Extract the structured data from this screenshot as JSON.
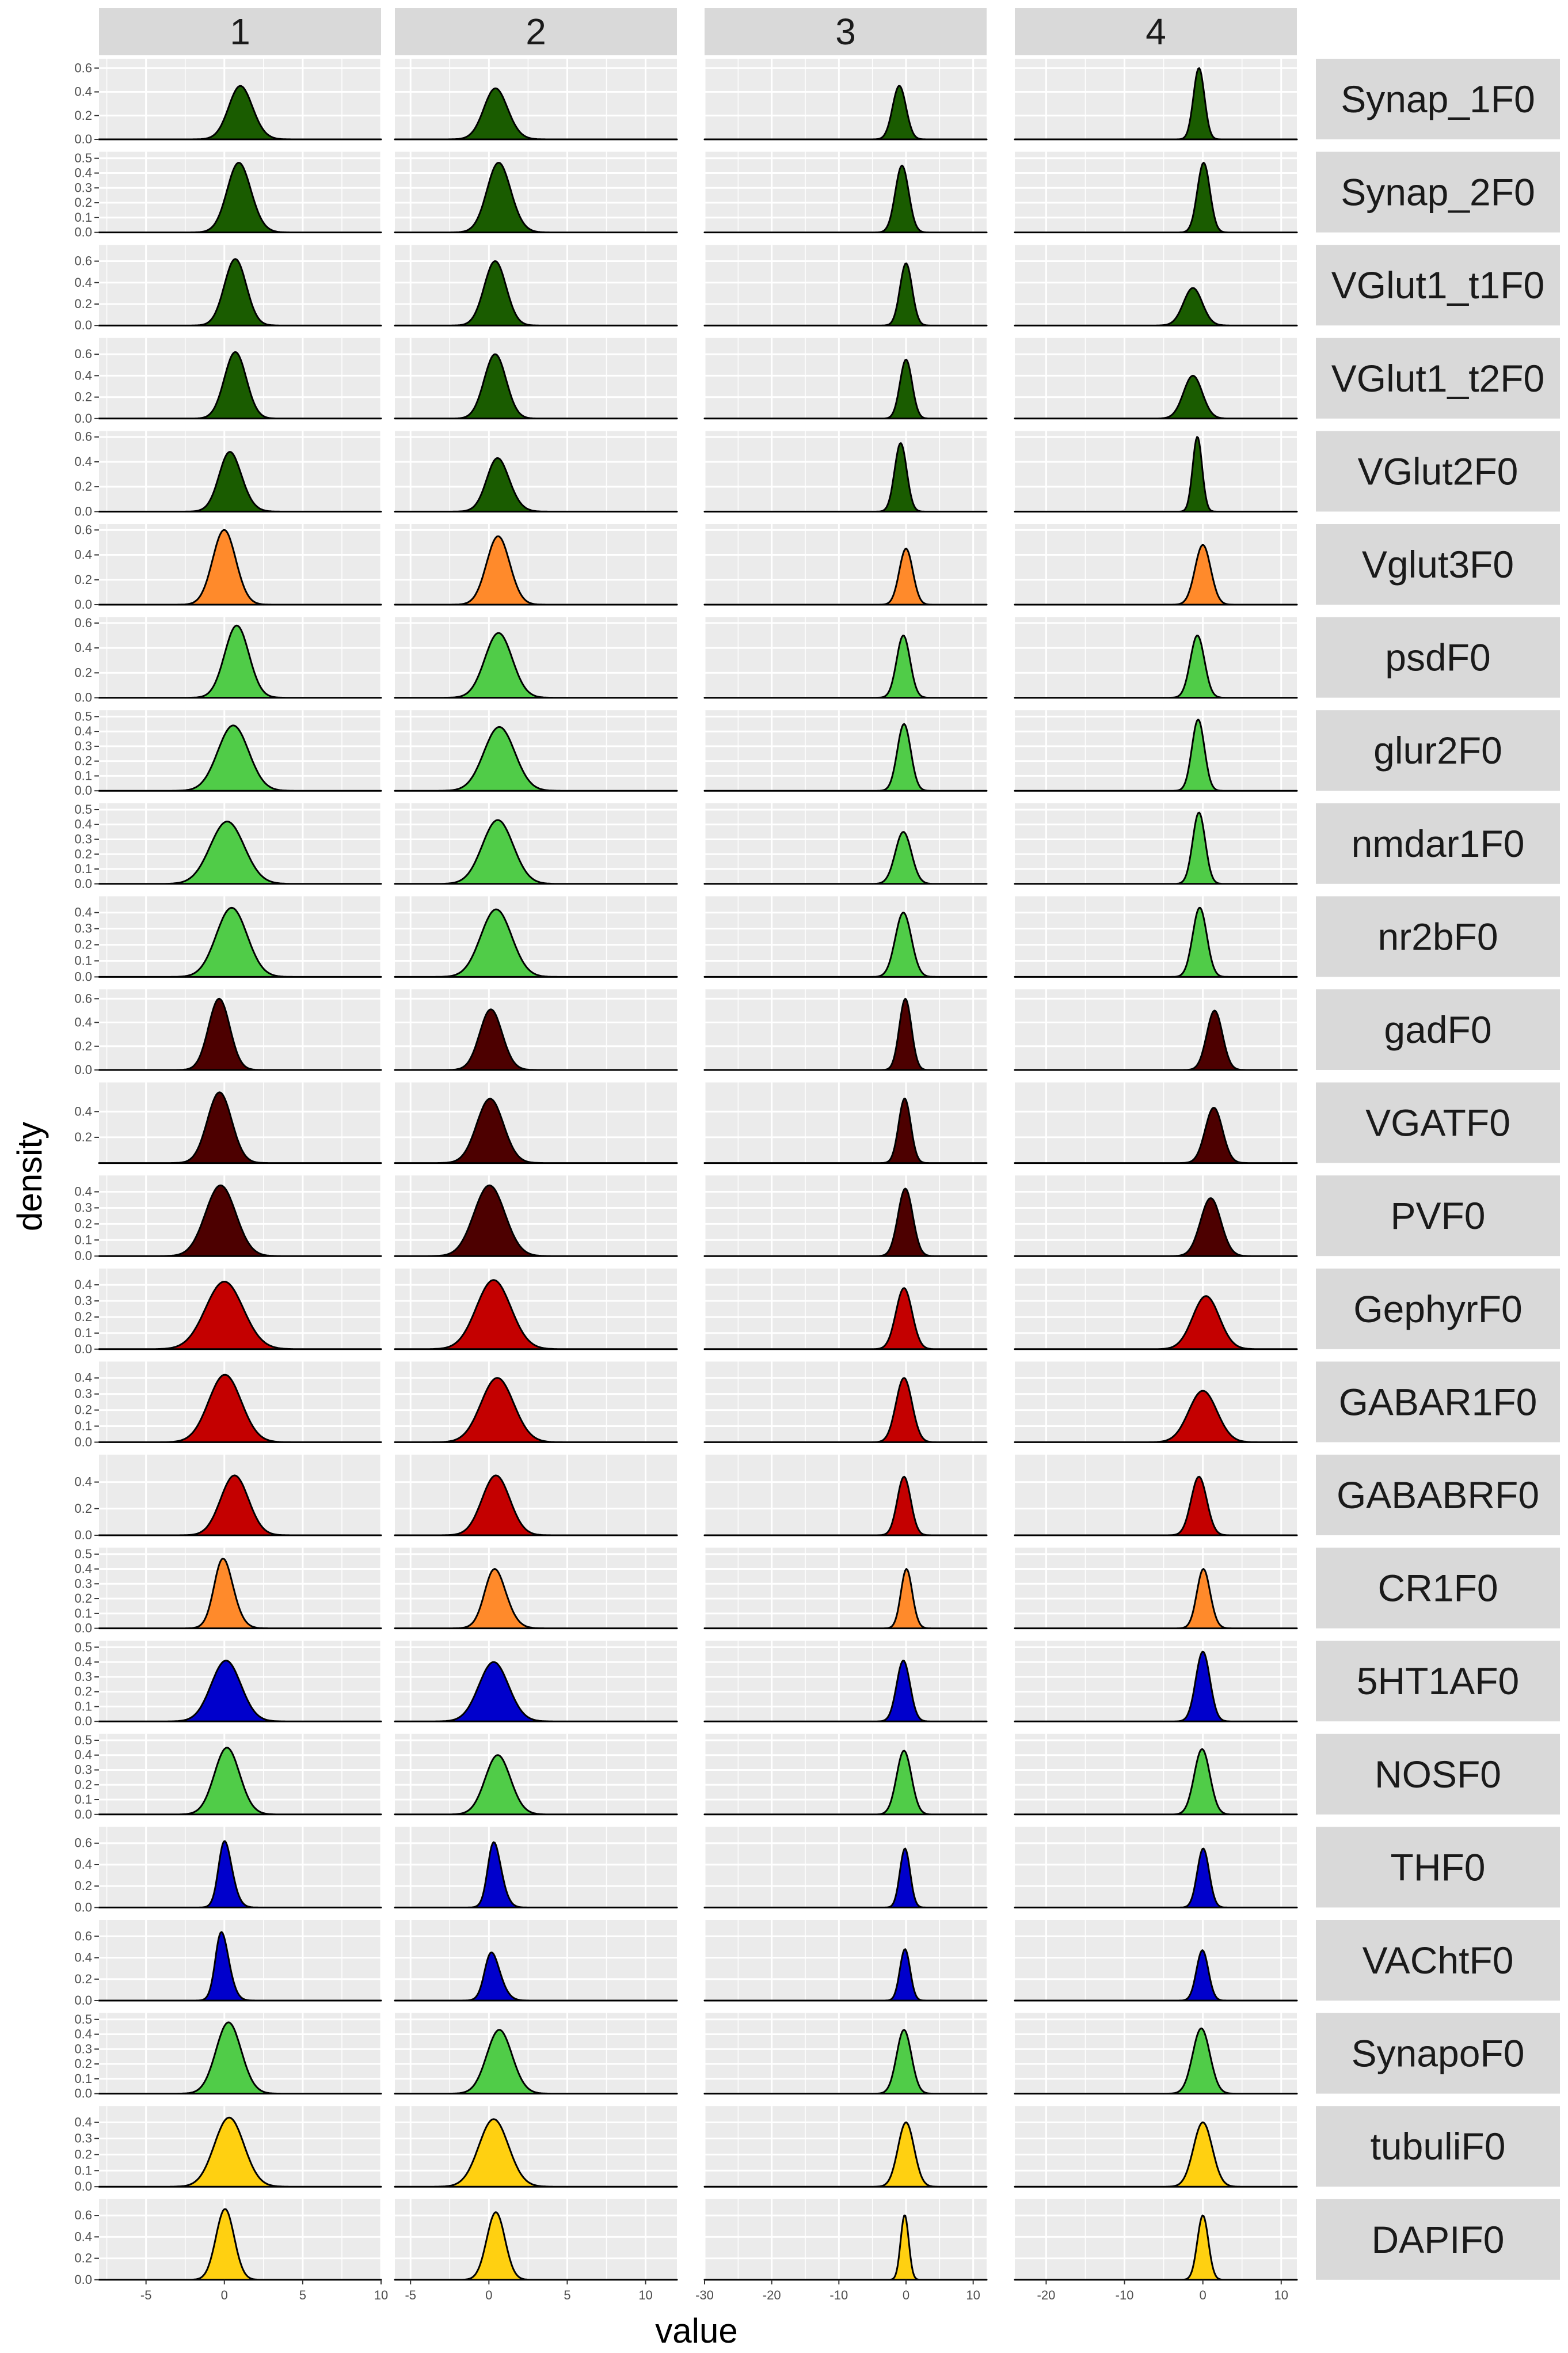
{
  "chart_data": {
    "type": "area",
    "subtype": "density-facet-grid",
    "title": "",
    "xlabel": "value",
    "ylabel": "density",
    "columns": [
      {
        "label": "1",
        "xlim": [
          -8,
          10
        ],
        "xticks": [
          -5,
          0,
          5,
          10
        ]
      },
      {
        "label": "2",
        "xlim": [
          -6,
          12
        ],
        "xticks": [
          -5,
          0,
          5,
          10
        ]
      },
      {
        "label": "3",
        "xlim": [
          -30,
          12
        ],
        "xticks": [
          -30,
          -20,
          -10,
          0,
          10
        ]
      },
      {
        "label": "4",
        "xlim": [
          -24,
          12
        ],
        "xticks": [
          -20,
          -10,
          0,
          10
        ]
      }
    ],
    "rows": [
      {
        "label": "Synap_1F0",
        "color": "#1a5c00",
        "ymax": 0.65,
        "yticks": [
          "0.0",
          "0.2",
          "0.4",
          "0.6"
        ],
        "dist": [
          {
            "mu": 0.6,
            "sd": 0.9,
            "skew": 0.8,
            "peak": 0.45
          },
          {
            "mu": 0.0,
            "sd": 0.9,
            "skew": 0.8,
            "peak": 0.43
          },
          {
            "mu": -1.0,
            "sd": 1.0,
            "skew": 0.0,
            "peak": 0.45
          },
          {
            "mu": -0.5,
            "sd": 0.7,
            "skew": 0.0,
            "peak": 0.6
          }
        ]
      },
      {
        "label": "Synap_2F0",
        "color": "#1a5c00",
        "ymax": 0.52,
        "yticks": [
          "0.0",
          "0.1",
          "0.2",
          "0.3",
          "0.4",
          "0.5"
        ],
        "dist": [
          {
            "mu": 0.5,
            "sd": 0.9,
            "skew": 0.8,
            "peak": 0.47
          },
          {
            "mu": 0.2,
            "sd": 0.9,
            "skew": 0.8,
            "peak": 0.47
          },
          {
            "mu": -0.6,
            "sd": 1.0,
            "skew": 0.0,
            "peak": 0.45
          },
          {
            "mu": 0.1,
            "sd": 0.8,
            "skew": 0.0,
            "peak": 0.47
          }
        ]
      },
      {
        "label": "VGlut1_t1F0",
        "color": "#1a5c00",
        "ymax": 0.72,
        "yticks": [
          "0.0",
          "0.2",
          "0.4",
          "0.6"
        ],
        "dist": [
          {
            "mu": 0.7,
            "sd": 0.7,
            "skew": 0.0,
            "peak": 0.62
          },
          {
            "mu": 0.4,
            "sd": 0.7,
            "skew": 0.0,
            "peak": 0.6
          },
          {
            "mu": 0.0,
            "sd": 0.9,
            "skew": 0.0,
            "peak": 0.58
          },
          {
            "mu": -0.8,
            "sd": 1.3,
            "skew": -0.5,
            "peak": 0.35
          }
        ]
      },
      {
        "label": "VGlut1_t2F0",
        "color": "#1a5c00",
        "ymax": 0.72,
        "yticks": [
          "0.0",
          "0.2",
          "0.4",
          "0.6"
        ],
        "dist": [
          {
            "mu": 0.7,
            "sd": 0.7,
            "skew": 0.0,
            "peak": 0.62
          },
          {
            "mu": 0.4,
            "sd": 0.7,
            "skew": 0.0,
            "peak": 0.6
          },
          {
            "mu": 0.0,
            "sd": 0.9,
            "skew": 0.0,
            "peak": 0.55
          },
          {
            "mu": -0.8,
            "sd": 1.3,
            "skew": -0.5,
            "peak": 0.4
          }
        ]
      },
      {
        "label": "VGlut2F0",
        "color": "#1a5c00",
        "ymax": 0.62,
        "yticks": [
          "0.0",
          "0.2",
          "0.4",
          "0.6"
        ],
        "dist": [
          {
            "mu": -0.1,
            "sd": 0.9,
            "skew": 1.0,
            "peak": 0.48
          },
          {
            "mu": 0.1,
            "sd": 0.9,
            "skew": 1.0,
            "peak": 0.43
          },
          {
            "mu": -0.8,
            "sd": 0.9,
            "skew": 0.0,
            "peak": 0.55
          },
          {
            "mu": -0.7,
            "sd": 0.6,
            "skew": 0.0,
            "peak": 0.6
          }
        ]
      },
      {
        "label": "Vglut3F0",
        "color": "#ff8a2b",
        "ymax": 0.62,
        "yticks": [
          "0.0",
          "0.2",
          "0.4",
          "0.6"
        ],
        "dist": [
          {
            "mu": -0.3,
            "sd": 0.8,
            "skew": 0.5,
            "peak": 0.6
          },
          {
            "mu": 0.3,
            "sd": 0.8,
            "skew": 0.5,
            "peak": 0.55
          },
          {
            "mu": 0.0,
            "sd": 1.0,
            "skew": 0.0,
            "peak": 0.45
          },
          {
            "mu": 0.0,
            "sd": 1.0,
            "skew": 0.0,
            "peak": 0.48
          }
        ]
      },
      {
        "label": "psdF0",
        "color": "#50cc48",
        "ymax": 0.62,
        "yticks": [
          "0.0",
          "0.2",
          "0.4",
          "0.6"
        ],
        "dist": [
          {
            "mu": 0.6,
            "sd": 0.8,
            "skew": 0.3,
            "peak": 0.58
          },
          {
            "mu": 0.4,
            "sd": 0.9,
            "skew": 0.3,
            "peak": 0.52
          },
          {
            "mu": -0.4,
            "sd": 1.0,
            "skew": 0.0,
            "peak": 0.5
          },
          {
            "mu": -0.7,
            "sd": 0.9,
            "skew": 0.0,
            "peak": 0.5
          }
        ]
      },
      {
        "label": "glur2F0",
        "color": "#50cc48",
        "ymax": 0.52,
        "yticks": [
          "0.0",
          "0.1",
          "0.2",
          "0.3",
          "0.4",
          "0.5"
        ],
        "dist": [
          {
            "mu": 0.4,
            "sd": 1.0,
            "skew": 0.2,
            "peak": 0.44
          },
          {
            "mu": 0.5,
            "sd": 1.0,
            "skew": 0.2,
            "peak": 0.43
          },
          {
            "mu": -0.3,
            "sd": 1.0,
            "skew": 0.0,
            "peak": 0.45
          },
          {
            "mu": -0.6,
            "sd": 0.8,
            "skew": 0.0,
            "peak": 0.48
          }
        ]
      },
      {
        "label": "nmdar1F0",
        "color": "#50cc48",
        "ymax": 0.52,
        "yticks": [
          "0.0",
          "0.1",
          "0.2",
          "0.3",
          "0.4",
          "0.5"
        ],
        "dist": [
          {
            "mu": 0.0,
            "sd": 1.1,
            "skew": 0.2,
            "peak": 0.42
          },
          {
            "mu": 0.4,
            "sd": 1.0,
            "skew": 0.2,
            "peak": 0.43
          },
          {
            "mu": -0.4,
            "sd": 1.2,
            "skew": 0.0,
            "peak": 0.35
          },
          {
            "mu": -0.5,
            "sd": 0.8,
            "skew": 0.0,
            "peak": 0.48
          }
        ]
      },
      {
        "label": "nr2bF0",
        "color": "#50cc48",
        "ymax": 0.48,
        "yticks": [
          "0.0",
          "0.1",
          "0.2",
          "0.3",
          "0.4"
        ],
        "dist": [
          {
            "mu": 0.3,
            "sd": 1.0,
            "skew": 0.2,
            "peak": 0.43
          },
          {
            "mu": 0.3,
            "sd": 1.0,
            "skew": 0.2,
            "peak": 0.42
          },
          {
            "mu": -0.4,
            "sd": 1.2,
            "skew": 0.0,
            "peak": 0.4
          },
          {
            "mu": -0.4,
            "sd": 0.9,
            "skew": 0.0,
            "peak": 0.43
          }
        ]
      },
      {
        "label": "gadF0",
        "color": "#4d0000",
        "ymax": 0.65,
        "yticks": [
          "0.0",
          "0.2",
          "0.4",
          "0.6"
        ],
        "dist": [
          {
            "mu": -0.5,
            "sd": 0.7,
            "skew": 0.3,
            "peak": 0.6
          },
          {
            "mu": -0.2,
            "sd": 0.8,
            "skew": 0.6,
            "peak": 0.51
          },
          {
            "mu": -0.1,
            "sd": 0.9,
            "skew": 0.0,
            "peak": 0.6
          },
          {
            "mu": 1.5,
            "sd": 1.0,
            "skew": 0.0,
            "peak": 0.5
          }
        ]
      },
      {
        "label": "VGATF0",
        "color": "#4d0000",
        "ymax": 0.6,
        "yticks": [
          "0.2",
          "0.4"
        ],
        "dist": [
          {
            "mu": -0.5,
            "sd": 0.8,
            "skew": 0.3,
            "peak": 0.55
          },
          {
            "mu": -0.2,
            "sd": 0.9,
            "skew": 0.4,
            "peak": 0.5
          },
          {
            "mu": -0.2,
            "sd": 0.9,
            "skew": 0.0,
            "peak": 0.5
          },
          {
            "mu": 1.4,
            "sd": 1.1,
            "skew": 0.0,
            "peak": 0.43
          }
        ]
      },
      {
        "label": "PVF0",
        "color": "#4d0000",
        "ymax": 0.48,
        "yticks": [
          "0.0",
          "0.1",
          "0.2",
          "0.3",
          "0.4"
        ],
        "dist": [
          {
            "mu": 0.0,
            "sd": 1.0,
            "skew": -0.3,
            "peak": 0.44
          },
          {
            "mu": 0.2,
            "sd": 1.0,
            "skew": -0.2,
            "peak": 0.44
          },
          {
            "mu": -0.1,
            "sd": 1.1,
            "skew": 0.0,
            "peak": 0.42
          },
          {
            "mu": 1.0,
            "sd": 1.3,
            "skew": 0.0,
            "peak": 0.36
          }
        ]
      },
      {
        "label": "GephyrF0",
        "color": "#c40000",
        "ymax": 0.48,
        "yticks": [
          "0.0",
          "0.1",
          "0.2",
          "0.3",
          "0.4"
        ],
        "dist": [
          {
            "mu": 0.0,
            "sd": 1.2,
            "skew": 0.0,
            "peak": 0.42
          },
          {
            "mu": 0.3,
            "sd": 1.1,
            "skew": 0.0,
            "peak": 0.43
          },
          {
            "mu": -0.3,
            "sd": 1.2,
            "skew": 0.0,
            "peak": 0.38
          },
          {
            "mu": 0.4,
            "sd": 1.7,
            "skew": 0.0,
            "peak": 0.33
          }
        ]
      },
      {
        "label": "GABAR1F0",
        "color": "#c40000",
        "ymax": 0.48,
        "yticks": [
          "0.0",
          "0.1",
          "0.2",
          "0.3",
          "0.4"
        ],
        "dist": [
          {
            "mu": -0.3,
            "sd": 1.1,
            "skew": 0.4,
            "peak": 0.42
          },
          {
            "mu": 0.2,
            "sd": 1.1,
            "skew": 0.4,
            "peak": 0.4
          },
          {
            "mu": -0.3,
            "sd": 1.2,
            "skew": 0.0,
            "peak": 0.4
          },
          {
            "mu": 0.0,
            "sd": 1.8,
            "skew": 0.0,
            "peak": 0.32
          }
        ]
      },
      {
        "label": "GABABRF0",
        "color": "#c40000",
        "ymax": 0.58,
        "yticks": [
          "0.0",
          "0.2",
          "0.4"
        ],
        "dist": [
          {
            "mu": 0.5,
            "sd": 0.9,
            "skew": 0.2,
            "peak": 0.45
          },
          {
            "mu": 0.3,
            "sd": 0.9,
            "skew": 0.2,
            "peak": 0.45
          },
          {
            "mu": -0.3,
            "sd": 1.0,
            "skew": 0.0,
            "peak": 0.44
          },
          {
            "mu": -0.5,
            "sd": 1.0,
            "skew": 0.0,
            "peak": 0.44
          }
        ]
      },
      {
        "label": "CR1F0",
        "color": "#ff8a2b",
        "ymax": 0.52,
        "yticks": [
          "0.0",
          "0.1",
          "0.2",
          "0.3",
          "0.4",
          "0.5"
        ],
        "dist": [
          {
            "mu": -0.5,
            "sd": 0.8,
            "skew": 1.2,
            "peak": 0.47
          },
          {
            "mu": -0.1,
            "sd": 0.9,
            "skew": 1.2,
            "peak": 0.4
          },
          {
            "mu": -0.4,
            "sd": 1.0,
            "skew": 0.8,
            "peak": 0.4
          },
          {
            "mu": -0.4,
            "sd": 1.0,
            "skew": 0.8,
            "peak": 0.4
          }
        ]
      },
      {
        "label": "5HT1AF0",
        "color": "#0000cc",
        "ymax": 0.52,
        "yticks": [
          "0.0",
          "0.1",
          "0.2",
          "0.3",
          "0.4",
          "0.5"
        ],
        "dist": [
          {
            "mu": -0.2,
            "sd": 1.0,
            "skew": 0.4,
            "peak": 0.41
          },
          {
            "mu": 0.0,
            "sd": 1.0,
            "skew": 0.4,
            "peak": 0.4
          },
          {
            "mu": -0.4,
            "sd": 1.0,
            "skew": 0.0,
            "peak": 0.41
          },
          {
            "mu": 0.0,
            "sd": 0.9,
            "skew": 0.0,
            "peak": 0.47
          }
        ]
      },
      {
        "label": "NOSF0",
        "color": "#50cc48",
        "ymax": 0.52,
        "yticks": [
          "0.0",
          "0.1",
          "0.2",
          "0.3",
          "0.4",
          "0.5"
        ],
        "dist": [
          {
            "mu": -0.2,
            "sd": 0.9,
            "skew": 0.6,
            "peak": 0.45
          },
          {
            "mu": 0.2,
            "sd": 0.9,
            "skew": 0.6,
            "peak": 0.4
          },
          {
            "mu": -0.3,
            "sd": 1.1,
            "skew": 0.0,
            "peak": 0.43
          },
          {
            "mu": -0.1,
            "sd": 1.0,
            "skew": 0.0,
            "peak": 0.44
          }
        ]
      },
      {
        "label": "THF0",
        "color": "#0000cc",
        "ymax": 0.72,
        "yticks": [
          "0.0",
          "0.2",
          "0.4",
          "0.6"
        ],
        "dist": [
          {
            "mu": -0.3,
            "sd": 0.6,
            "skew": 1.5,
            "peak": 0.62
          },
          {
            "mu": 0.0,
            "sd": 0.6,
            "skew": 1.5,
            "peak": 0.61
          },
          {
            "mu": -0.4,
            "sd": 0.8,
            "skew": 0.4,
            "peak": 0.55
          },
          {
            "mu": -0.2,
            "sd": 0.8,
            "skew": 0.4,
            "peak": 0.55
          }
        ]
      },
      {
        "label": "VAChtF0",
        "color": "#0000cc",
        "ymax": 0.72,
        "yticks": [
          "0.0",
          "0.2",
          "0.4",
          "0.6"
        ],
        "dist": [
          {
            "mu": -0.5,
            "sd": 0.6,
            "skew": 1.5,
            "peak": 0.64
          },
          {
            "mu": -0.2,
            "sd": 0.7,
            "skew": 1.6,
            "peak": 0.45
          },
          {
            "mu": -0.4,
            "sd": 0.8,
            "skew": 0.4,
            "peak": 0.48
          },
          {
            "mu": -0.3,
            "sd": 0.8,
            "skew": 0.4,
            "peak": 0.47
          }
        ]
      },
      {
        "label": "SynapoF0",
        "color": "#50cc48",
        "ymax": 0.52,
        "yticks": [
          "0.0",
          "0.1",
          "0.2",
          "0.3",
          "0.4",
          "0.5"
        ],
        "dist": [
          {
            "mu": -0.1,
            "sd": 0.9,
            "skew": 0.6,
            "peak": 0.48
          },
          {
            "mu": 0.3,
            "sd": 0.9,
            "skew": 0.6,
            "peak": 0.43
          },
          {
            "mu": -0.3,
            "sd": 1.1,
            "skew": 0.0,
            "peak": 0.43
          },
          {
            "mu": -0.2,
            "sd": 1.1,
            "skew": 0.0,
            "peak": 0.44
          }
        ]
      },
      {
        "label": "tubuliF0",
        "color": "#ffd011",
        "ymax": 0.48,
        "yticks": [
          "0.0",
          "0.1",
          "0.2",
          "0.3",
          "0.4"
        ],
        "dist": [
          {
            "mu": 0.0,
            "sd": 1.0,
            "skew": 0.4,
            "peak": 0.43
          },
          {
            "mu": 0.0,
            "sd": 1.0,
            "skew": 0.4,
            "peak": 0.42
          },
          {
            "mu": 0.0,
            "sd": 1.2,
            "skew": 0.0,
            "peak": 0.4
          },
          {
            "mu": 0.0,
            "sd": 1.2,
            "skew": 0.0,
            "peak": 0.4
          }
        ]
      },
      {
        "label": "DAPIF0",
        "color": "#ffd011",
        "ymax": 0.72,
        "yticks": [
          "0.0",
          "0.2",
          "0.4",
          "0.6"
        ],
        "dist": [
          {
            "mu": -0.1,
            "sd": 0.6,
            "skew": 0.3,
            "peak": 0.66
          },
          {
            "mu": 0.3,
            "sd": 0.6,
            "skew": 0.3,
            "peak": 0.63
          },
          {
            "mu": -0.2,
            "sd": 0.6,
            "skew": 0.0,
            "peak": 0.6
          },
          {
            "mu": 0.0,
            "sd": 0.7,
            "skew": 0.0,
            "peak": 0.6
          }
        ]
      }
    ]
  }
}
